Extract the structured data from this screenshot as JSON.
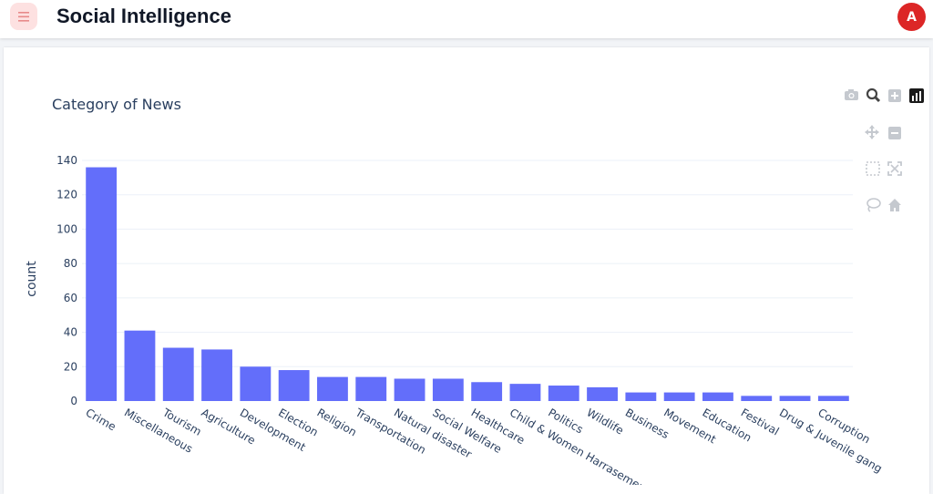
{
  "header": {
    "title": "Social Intelligence",
    "avatar_initial": "A",
    "menu_icon": "hamburger-icon"
  },
  "colors": {
    "accent": "#dc2626",
    "menu_bg": "#fde1e1",
    "bar": "#636efa",
    "text": "#2a3f5f"
  },
  "modebar": {
    "buttons": [
      "camera-icon",
      "zoom-icon",
      "zoom-in-icon",
      "plotly-logo-icon",
      "pan-icon",
      "zoom-out-icon",
      "box-select-icon",
      "autoscale-icon",
      "lasso-select-icon",
      "reset-axes-icon"
    ]
  },
  "chart_data": {
    "type": "bar",
    "title": "Category of News",
    "xlabel": "",
    "ylabel": "count",
    "ylim": [
      0,
      140
    ],
    "yticks": [
      0,
      20,
      40,
      60,
      80,
      100,
      120,
      140
    ],
    "grid": true,
    "categories": [
      "Crime",
      "Miscellaneous",
      "Tourism",
      "Agriculture",
      "Development",
      "Election",
      "Religion",
      "Transportation",
      "Natural disaster",
      "Social Welfare",
      "Healthcare",
      "Child & Women Harrasement",
      "Politics",
      "Wildlife",
      "Business",
      "Movement",
      "Education",
      "Festival",
      "Drug & Juvenile gang",
      "Corruption"
    ],
    "values": [
      136,
      41,
      31,
      30,
      20,
      18,
      14,
      14,
      13,
      13,
      11,
      10,
      9,
      8,
      5,
      5,
      5,
      3,
      3,
      3
    ]
  }
}
